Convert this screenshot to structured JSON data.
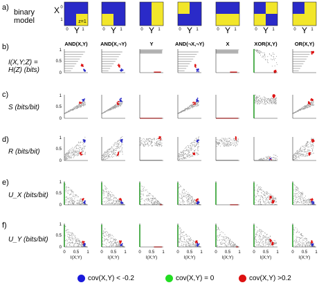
{
  "rows": [
    {
      "letter": "a)",
      "label": "binary\nmodel"
    },
    {
      "letter": "b)",
      "label": "I(X,Y;Z) =\nH(Z) (bits)"
    },
    {
      "letter": "c)",
      "label": "S (bits/bit)"
    },
    {
      "letter": "d)",
      "label": "R (bits/bit)"
    },
    {
      "letter": "e)",
      "label": "U_X (bits/bit)"
    },
    {
      "letter": "f)",
      "label": "U_Y (bits/bit)"
    }
  ],
  "columns": [
    "AND(X,Y)",
    "AND(X,¬Y)",
    "Y",
    "AND(¬X,¬Y)",
    "X",
    "XOR(X,Y)",
    "OR(X,Y)"
  ],
  "binary_model": {
    "x_axis": "X",
    "y_axis": "Y",
    "tick_0": "0",
    "tick_1": "1",
    "z_label": "z=1",
    "grids": [
      [
        0,
        0,
        0,
        1
      ],
      [
        0,
        0,
        1,
        0
      ],
      [
        0,
        1,
        0,
        1
      ],
      [
        1,
        0,
        0,
        0
      ],
      [
        0,
        0,
        1,
        1
      ],
      [
        0,
        1,
        1,
        0
      ],
      [
        0,
        1,
        1,
        1
      ]
    ]
  },
  "axes": {
    "xlabel": "I(X;Y)",
    "x_ticks": [
      "0",
      "0.5",
      "1"
    ],
    "y_ticks": [
      "0",
      "0.5",
      "1"
    ]
  },
  "legend": [
    {
      "color": "#1a1adb",
      "label": "cov(X,Y) < -0.2"
    },
    {
      "color": "#22dd22",
      "label": "cov(X,Y) = 0"
    },
    {
      "color": "#dd1111",
      "label": "cov(X,Y) >0.2"
    }
  ],
  "colors": {
    "blue": "#2a2ac8",
    "yellow": "#f2e62a",
    "gray": "#9a9a9a",
    "green": "#22dd22",
    "red": "#dd1111",
    "darkblue": "#1a1adb"
  }
}
